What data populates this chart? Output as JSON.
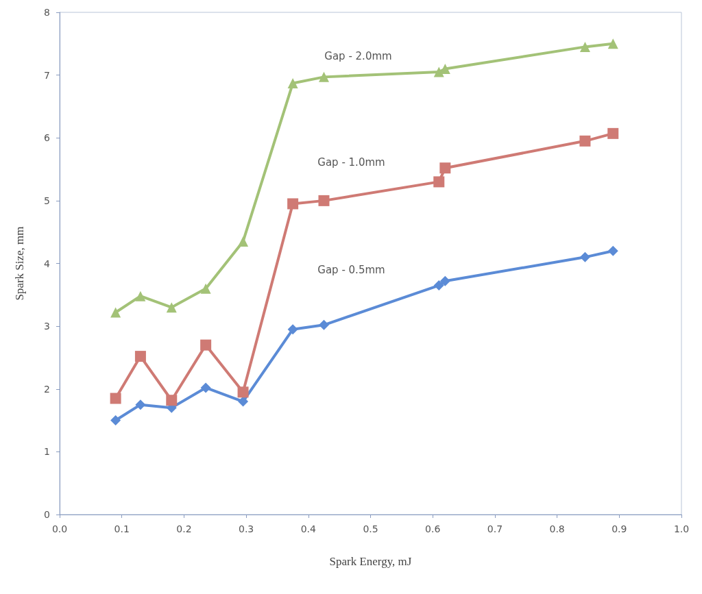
{
  "chart_data": {
    "type": "line",
    "xlabel": "Spark Energy, mJ",
    "ylabel": "Spark Size, mm",
    "x": [
      0.09,
      0.13,
      0.18,
      0.235,
      0.295,
      0.375,
      0.425,
      0.61,
      0.62,
      0.845,
      0.89
    ],
    "series": [
      {
        "name": "Gap - 0.5mm",
        "color": "#5b8bd6",
        "marker": "diamond",
        "values": [
          1.5,
          1.75,
          1.7,
          2.02,
          1.8,
          2.95,
          3.02,
          3.65,
          3.72,
          4.1,
          4.2
        ]
      },
      {
        "name": "Gap - 1.0mm",
        "color": "#cf7a74",
        "marker": "square",
        "values": [
          1.85,
          2.52,
          1.82,
          2.7,
          1.95,
          4.95,
          5.0,
          5.3,
          5.52,
          5.95,
          6.07
        ]
      },
      {
        "name": "Gap - 2.0mm",
        "color": "#a3c277",
        "marker": "triangle",
        "values": [
          3.22,
          3.48,
          3.3,
          3.6,
          4.35,
          6.87,
          6.97,
          7.05,
          7.1,
          7.45,
          7.5
        ]
      }
    ],
    "xlim": [
      0,
      1
    ],
    "xticks": [
      {
        "value": 0,
        "label": "0.0"
      },
      0.1,
      0.2,
      0.3,
      0.4,
      0.5,
      0.6,
      0.7,
      0.8,
      0.9,
      {
        "value": 1,
        "label": "1.0"
      }
    ],
    "ylim": [
      0,
      8
    ],
    "yticks": [
      0,
      1,
      2,
      3,
      4,
      5,
      6,
      7,
      8
    ],
    "grid": false,
    "line_style": "solid"
  }
}
